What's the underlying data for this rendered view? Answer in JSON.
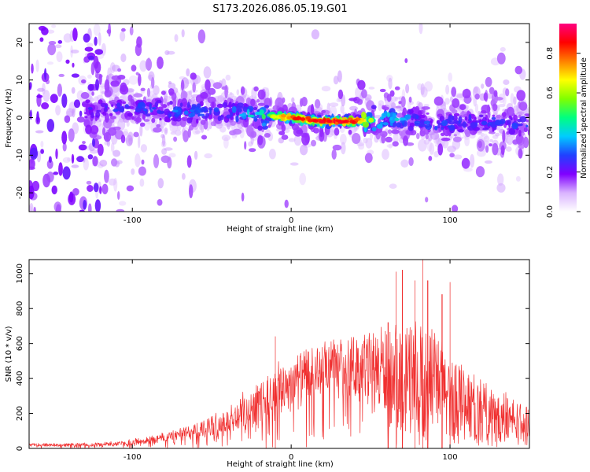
{
  "title": "S173.2026.086.05.19.G01",
  "chart_data": [
    {
      "type": "heatmap",
      "name": "spectrogram",
      "xlabel": "Height of straight line (km)",
      "ylabel": "Frequency (Hz)",
      "xlim": [
        -165,
        150
      ],
      "ylim": [
        -25,
        25
      ],
      "xticks": [
        -100,
        0,
        100
      ],
      "yticks": [
        -20,
        -10,
        0,
        10,
        20
      ],
      "colorbar": {
        "label": "Normalized spectral amplitude",
        "ticks": [
          0.0,
          0.2,
          0.4,
          0.6,
          0.8
        ],
        "range": [
          0.0,
          0.95
        ],
        "colormap": "rainbow",
        "stops": [
          "#ffffff",
          "#d9b3ff",
          "#8000ff",
          "#2040ff",
          "#00ccff",
          "#00ff80",
          "#80ff00",
          "#ffff00",
          "#ff8000",
          "#ff0000",
          "#ff0080"
        ]
      },
      "ridge": {
        "description_x_km": [
          -130,
          -100,
          -70,
          -40,
          -20,
          0,
          20,
          40,
          60,
          90,
          120,
          150
        ],
        "center_hz": [
          2,
          2.5,
          1.5,
          1.5,
          0.5,
          0,
          -1,
          -1,
          0,
          -2,
          -1,
          -2
        ],
        "peak_amplitude": [
          0.25,
          0.3,
          0.35,
          0.3,
          0.5,
          0.85,
          0.9,
          0.9,
          0.45,
          0.3,
          0.3,
          0.3
        ]
      }
    },
    {
      "type": "line",
      "name": "snr",
      "xlabel": "Height of straight line (km)",
      "ylabel": "SNR (10 * v/v)",
      "xlim": [
        -165,
        150
      ],
      "ylim": [
        0,
        1080
      ],
      "xticks": [
        -100,
        0,
        100
      ],
      "yticks": [
        0,
        200,
        400,
        600,
        800,
        1000
      ],
      "color": "#f03030",
      "envelope": {
        "x": [
          -165,
          -140,
          -120,
          -100,
          -80,
          -60,
          -40,
          -20,
          0,
          20,
          40,
          60,
          80,
          100,
          120,
          150
        ],
        "mean": [
          20,
          20,
          22,
          35,
          60,
          100,
          150,
          260,
          380,
          450,
          470,
          440,
          420,
          330,
          220,
          130
        ],
        "spread": [
          12,
          12,
          14,
          22,
          35,
          60,
          100,
          160,
          180,
          180,
          200,
          320,
          400,
          300,
          200,
          120
        ]
      },
      "spikes": [
        {
          "x": -10,
          "y": 640
        },
        {
          "x": 61,
          "y": 720
        },
        {
          "x": 66,
          "y": 1010
        },
        {
          "x": 70,
          "y": 1020
        },
        {
          "x": 78,
          "y": 960
        },
        {
          "x": 83,
          "y": 1080
        },
        {
          "x": 86,
          "y": 960
        },
        {
          "x": 95,
          "y": 880
        },
        {
          "x": 100,
          "y": 950
        }
      ]
    }
  ]
}
